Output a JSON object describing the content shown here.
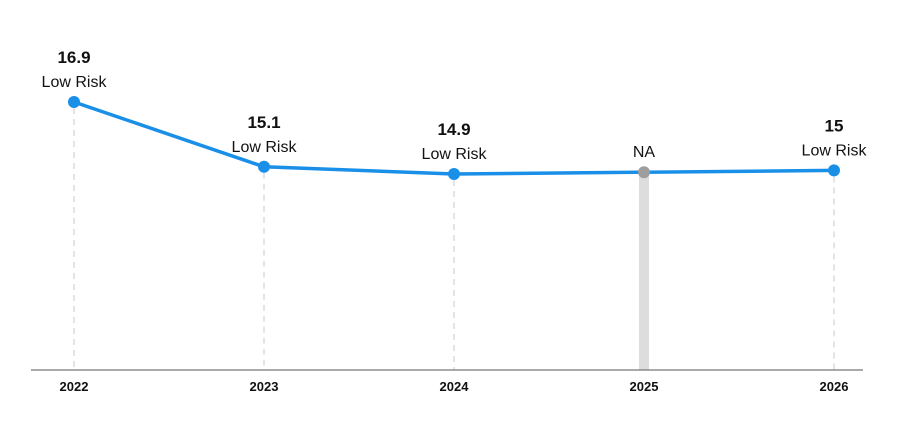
{
  "chart_data": {
    "type": "line",
    "title": "",
    "xlabel": "",
    "ylabel": "",
    "categories": [
      "2022",
      "2023",
      "2024",
      "2025",
      "2026"
    ],
    "values": [
      16.9,
      15.1,
      14.9,
      null,
      15
    ],
    "value_labels": [
      "16.9",
      "15.1",
      "14.9",
      "NA",
      "15"
    ],
    "risk_labels": [
      "Low Risk",
      "Low Risk",
      "Low Risk",
      "",
      "Low Risk"
    ],
    "y_axis_visible": false,
    "grid": "dashed vertical guide per category",
    "colors": {
      "line": "#1a8fe8",
      "point": "#1a8fe8",
      "na_point": "#9e9e9e",
      "na_bar": "#dddddd",
      "guide": "#c8c8c8",
      "axis": "#777777"
    }
  }
}
